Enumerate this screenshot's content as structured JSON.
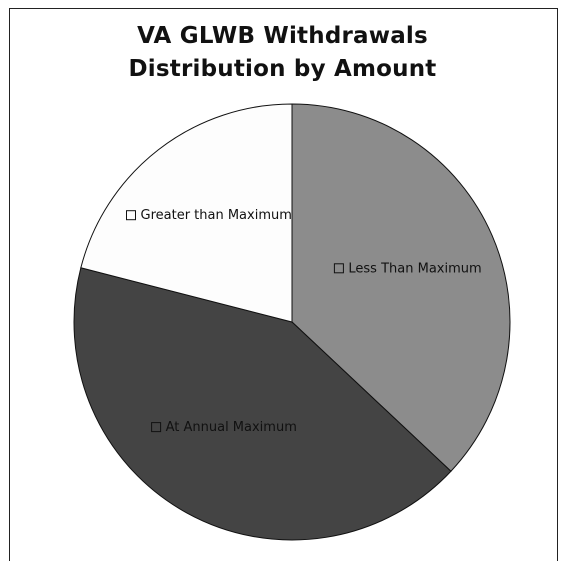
{
  "chart_data": {
    "type": "pie",
    "title_lines": [
      "VA GLWB Withdrawals",
      "Distribution by Amount"
    ],
    "slices": [
      {
        "label": "Less Than Maximum",
        "value": 37,
        "color": "#8c8c8c"
      },
      {
        "label": "At Annual Maximum",
        "value": 42,
        "color": "#444444"
      },
      {
        "label": "Greater than Maximum",
        "value": 21,
        "color": "#fdfdfd"
      }
    ],
    "start_angle_deg": 0,
    "direction": "clockwise",
    "legend": "none",
    "labels_on_slices": true
  }
}
